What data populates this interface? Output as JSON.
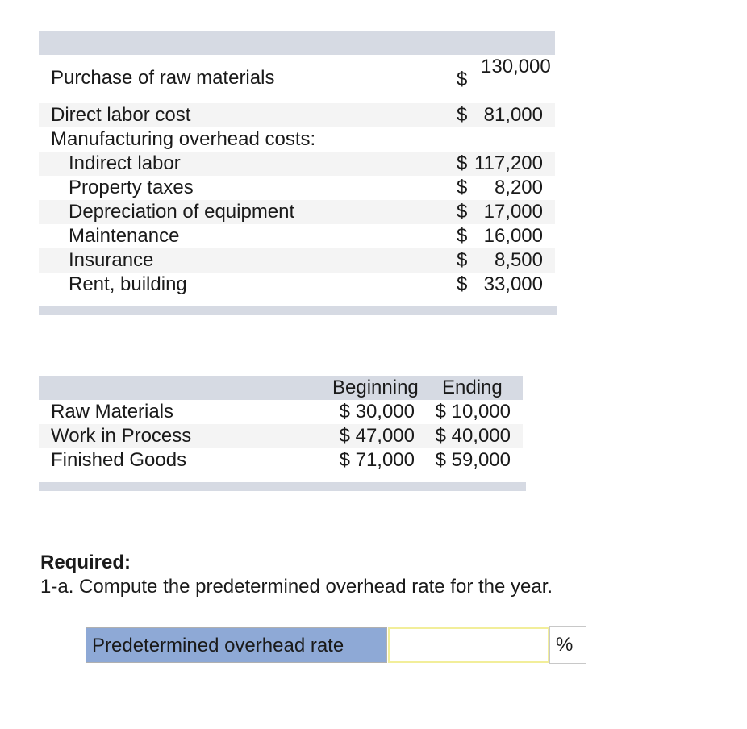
{
  "costs": {
    "rows": [
      {
        "label": "Purchase of raw materials",
        "symbol": "$",
        "value": "130,000"
      },
      {
        "label": "Direct labor cost",
        "symbol": "$",
        "value": "81,000"
      },
      {
        "label": "Manufacturing overhead costs:"
      },
      {
        "label": "Indirect labor",
        "symbol": "$",
        "value": "117,200"
      },
      {
        "label": "Property taxes",
        "symbol": "$",
        "value": "8,200"
      },
      {
        "label": "Depreciation of equipment",
        "symbol": "$",
        "value": "17,000"
      },
      {
        "label": "Maintenance",
        "symbol": "$",
        "value": "16,000"
      },
      {
        "label": "Insurance",
        "symbol": "$",
        "value": "8,500"
      },
      {
        "label": "Rent, building",
        "symbol": "$",
        "value": "33,000"
      }
    ]
  },
  "inventory": {
    "headers": [
      "Beginning",
      "Ending"
    ],
    "rows": [
      {
        "label": "Raw Materials",
        "beginning": "$ 30,000",
        "ending": "$ 10,000"
      },
      {
        "label": "Work in Process",
        "beginning": "$ 47,000",
        "ending": "$ 40,000"
      },
      {
        "label": "Finished Goods",
        "beginning": "$ 71,000",
        "ending": "$ 59,000"
      }
    ]
  },
  "required": {
    "title": "Required:",
    "question": "1-a. Compute the predetermined overhead rate for the year."
  },
  "answer": {
    "label": "Predetermined overhead rate",
    "value": "",
    "unit": "%"
  }
}
